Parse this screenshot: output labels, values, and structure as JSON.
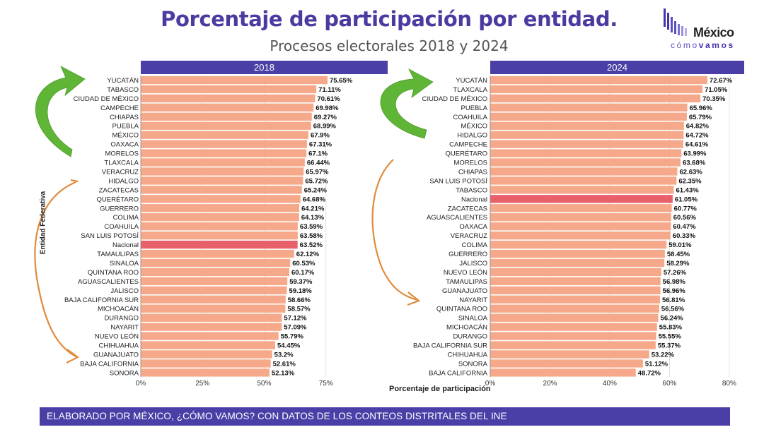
{
  "title": "Porcentaje de participación por entidad.",
  "subtitle": "Procesos electorales 2018 y 2024",
  "logo": {
    "word": "México",
    "sub_pre": "cómo",
    "sub_post": "vamos"
  },
  "footer": "ELABORADO POR MÉXICO, ¿CÓMO VAMOS? CON DATOS DE LOS CONTEOS DISTRITALES DEL INE",
  "colors": {
    "bar": "#f6a98a",
    "highlight": "#e8606a",
    "header": "#4a3fa6",
    "green_arrow": "#5fb535",
    "orange_arrow": "#e08a3c"
  },
  "chart_data": [
    {
      "type": "bar",
      "orientation": "horizontal",
      "title": "2018",
      "xlabel": "",
      "ylabel": "Entidad Federativa",
      "xlim": [
        0,
        100
      ],
      "x_ticks": [
        "0%",
        "25%",
        "50%",
        "75%"
      ],
      "highlight": "Nacional",
      "categories": [
        "YUCATÁN",
        "TABASCO",
        "CIUDAD DE MÉXICO",
        "CAMPECHE",
        "CHIAPAS",
        "PUEBLA",
        "MÉXICO",
        "OAXACA",
        "MORELOS",
        "TLAXCALA",
        "VERACRUZ",
        "HIDALGO",
        "ZACATECAS",
        "QUERÉTARO",
        "GUERRERO",
        "COLIMA",
        "COAHUILA",
        "SAN LUIS POTOSÍ",
        "Nacional",
        "TAMAULIPAS",
        "SINALOA",
        "QUINTANA ROO",
        "AGUASCALIENTES",
        "JALISCO",
        "BAJA CALIFORNIA SUR",
        "MICHOACÁN",
        "DURANGO",
        "NAYARIT",
        "NUEVO LEÓN",
        "CHIHUAHUA",
        "GUANAJUATO",
        "BAJA CALIFORNIA",
        "SONORA"
      ],
      "values": [
        75.65,
        71.11,
        70.61,
        69.98,
        69.27,
        68.99,
        67.9,
        67.31,
        67.1,
        66.44,
        65.97,
        65.72,
        65.24,
        64.68,
        64.21,
        64.13,
        63.59,
        63.58,
        63.52,
        62.12,
        60.53,
        60.17,
        59.37,
        59.18,
        58.66,
        58.57,
        57.12,
        57.09,
        55.79,
        54.45,
        53.2,
        52.61,
        52.13
      ],
      "labels": [
        "75.65%",
        "71.11%",
        "70.61%",
        "69.98%",
        "69.27%",
        "68.99%",
        "67.9%",
        "67.31%",
        "67.1%",
        "66.44%",
        "65.97%",
        "65.72%",
        "65.24%",
        "64.68%",
        "64.21%",
        "64.13%",
        "63.59%",
        "63.58%",
        "63.52%",
        "62.12%",
        "60.53%",
        "60.17%",
        "59.37%",
        "59.18%",
        "58.66%",
        "58.57%",
        "57.12%",
        "57.09%",
        "55.79%",
        "54.45%",
        "53.2%",
        "52.61%",
        "52.13%"
      ]
    },
    {
      "type": "bar",
      "orientation": "horizontal",
      "title": "2024",
      "xlabel": "Porcentaje de participación",
      "ylabel": "",
      "xlim": [
        0,
        85
      ],
      "x_ticks": [
        "0%",
        "20%",
        "40%",
        "60%",
        "80%"
      ],
      "highlight": "Nacional",
      "categories": [
        "YUCATÁN",
        "TLAXCALA",
        "CIUDAD DE MÉXICO",
        "PUEBLA",
        "COAHUILA",
        "MÉXICO",
        "HIDALGO",
        "CAMPECHE",
        "QUERÉTARO",
        "MORELOS",
        "CHIAPAS",
        "SAN LUIS POTOSÍ",
        "TABASCO",
        "Nacional",
        "ZACATECAS",
        "AGUASCALIENTES",
        "OAXACA",
        "VERACRUZ",
        "COLIMA",
        "GUERRERO",
        "JALISCO",
        "NUEVO LEÓN",
        "TAMAULIPAS",
        "GUANAJUATO",
        "NAYARIT",
        "QUINTANA ROO",
        "SINALOA",
        "MICHOACÁN",
        "DURANGO",
        "BAJA CALIFORNIA SUR",
        "CHIHUAHUA",
        "SONORA",
        "BAJA CALIFORNIA"
      ],
      "values": [
        72.67,
        71.05,
        70.35,
        65.96,
        65.79,
        64.82,
        64.72,
        64.61,
        63.99,
        63.68,
        62.63,
        62.35,
        61.43,
        61.05,
        60.77,
        60.56,
        60.47,
        60.33,
        59.01,
        58.45,
        58.29,
        57.26,
        56.98,
        56.96,
        56.81,
        56.56,
        56.24,
        55.83,
        55.55,
        55.37,
        53.22,
        51.12,
        48.72
      ],
      "labels": [
        "72.67%",
        "71.05%",
        "70.35%",
        "65.96%",
        "65.79%",
        "64.82%",
        "64.72%",
        "64.61%",
        "63.99%",
        "63.68%",
        "62.63%",
        "62.35%",
        "61.43%",
        "61.05%",
        "60.77%",
        "60.56%",
        "60.47%",
        "60.33%",
        "59.01%",
        "58.45%",
        "58.29%",
        "57.26%",
        "56.98%",
        "56.96%",
        "56.81%",
        "56.56%",
        "56.24%",
        "55.83%",
        "55.55%",
        "55.37%",
        "53.22%",
        "51.12%",
        "48.72%"
      ]
    }
  ]
}
